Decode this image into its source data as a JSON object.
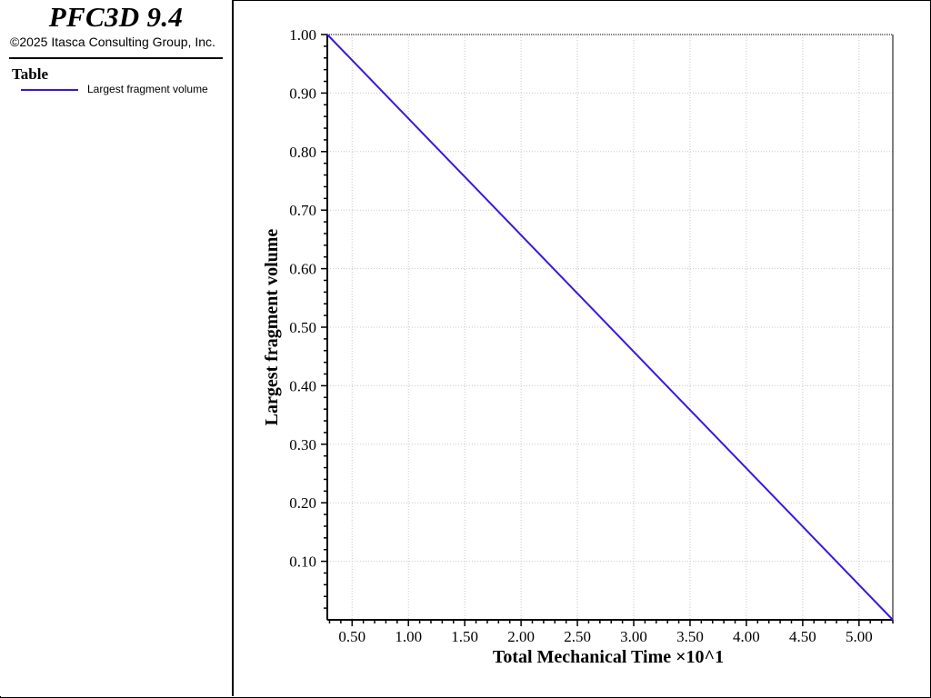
{
  "header": {
    "app_title": "PFC3D 9.4",
    "copyright": "©2025 Itasca Consulting Group, Inc."
  },
  "legend": {
    "heading": "Table",
    "items": [
      {
        "label": "Largest fragment volume",
        "color": "#3a16e0"
      }
    ]
  },
  "chart_data": {
    "type": "line",
    "xlabel": "Total Mechanical Time ×10^1",
    "ylabel": "Largest fragment volume",
    "xlim": [
      0.28,
      5.3
    ],
    "ylim": [
      0.0,
      1.0
    ],
    "x_ticks": [
      0.5,
      1.0,
      1.5,
      2.0,
      2.5,
      3.0,
      3.5,
      4.0,
      4.5,
      5.0
    ],
    "x_tick_labels": [
      "0.50",
      "1.00",
      "1.50",
      "2.00",
      "2.50",
      "3.00",
      "3.50",
      "4.00",
      "4.50",
      "5.00"
    ],
    "y_ticks": [
      0.1,
      0.2,
      0.3,
      0.4,
      0.5,
      0.6,
      0.7,
      0.8,
      0.9,
      1.0
    ],
    "y_tick_labels": [
      "0.10",
      "0.20",
      "0.30",
      "0.40",
      "0.50",
      "0.60",
      "0.70",
      "0.80",
      "0.90",
      "1.00"
    ],
    "grid": true,
    "series": [
      {
        "name": "Largest fragment volume",
        "color": "#3a16e0",
        "x": [
          0.28,
          5.3
        ],
        "y": [
          1.0,
          0.0
        ]
      }
    ]
  }
}
